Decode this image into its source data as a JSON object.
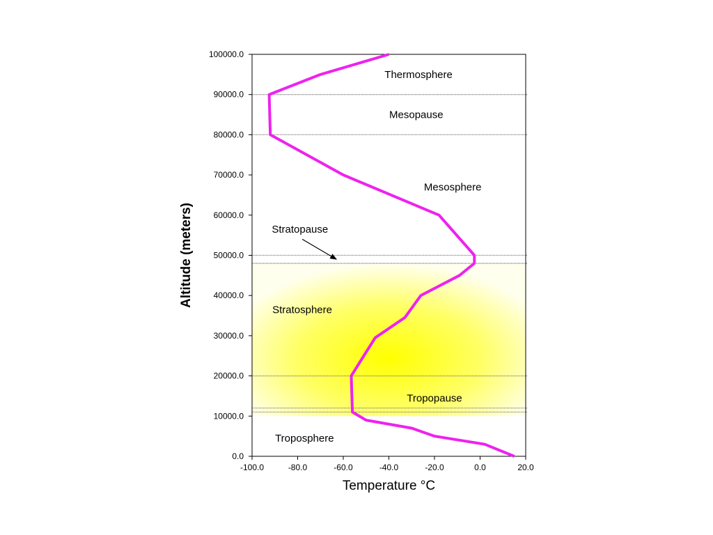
{
  "chart_data": {
    "type": "line",
    "title": "",
    "xlabel": "Temperature °C",
    "ylabel": "Altitude (meters)",
    "xlim": [
      -100,
      20
    ],
    "ylim": [
      0,
      100000
    ],
    "x_ticks": [
      "-100.0",
      "-80.0",
      "-60.0",
      "-40.0",
      "-20.0",
      "0.0",
      "20.0"
    ],
    "y_ticks": [
      "0.0",
      "10000.0",
      "20000.0",
      "30000.0",
      "40000.0",
      "50000.0",
      "60000.0",
      "70000.0",
      "80000.0",
      "90000.0",
      "100000.0"
    ],
    "grid": false,
    "series": [
      {
        "name": "",
        "color": "#ee22ee",
        "points": [
          {
            "x": 15,
            "y": 0
          },
          {
            "x": 2,
            "y": 3000
          },
          {
            "x": -20,
            "y": 5000
          },
          {
            "x": -30,
            "y": 7000
          },
          {
            "x": -50,
            "y": 9000
          },
          {
            "x": -56,
            "y": 11000
          },
          {
            "x": -56.5,
            "y": 20000
          },
          {
            "x": -51,
            "y": 25000
          },
          {
            "x": -46,
            "y": 29500
          },
          {
            "x": -33,
            "y": 34500
          },
          {
            "x": -26,
            "y": 40000
          },
          {
            "x": -9,
            "y": 45000
          },
          {
            "x": -2.5,
            "y": 48000
          },
          {
            "x": -2.5,
            "y": 50000
          },
          {
            "x": -18,
            "y": 60000
          },
          {
            "x": -60,
            "y": 70000
          },
          {
            "x": -92,
            "y": 80000
          },
          {
            "x": -92.5,
            "y": 90000
          },
          {
            "x": -70,
            "y": 95000
          },
          {
            "x": -40,
            "y": 100000
          }
        ]
      }
    ],
    "boundaries": [
      11000,
      12000,
      20000,
      48000,
      50000,
      80000,
      90000
    ],
    "shaded_region": {
      "from": 10000,
      "to": 48000,
      "color": "#ffff00"
    },
    "annotations": [
      {
        "text": "Thermosphere",
        "x": -27,
        "y": 95000
      },
      {
        "text": "Mesopause",
        "x": -28,
        "y": 85000
      },
      {
        "text": "Mesosphere",
        "x": -12,
        "y": 67000
      },
      {
        "text": "Stratopause",
        "x": -79,
        "y": 56500
      },
      {
        "text": "Stratosphere",
        "x": -78,
        "y": 36500
      },
      {
        "text": "Tropopause",
        "x": -20,
        "y": 14500
      },
      {
        "text": "Troposphere",
        "x": -77,
        "y": 4500
      }
    ],
    "arrows": [
      {
        "from_x": -78,
        "from_y": 54000,
        "to_x": -63,
        "to_y": 49000
      }
    ]
  }
}
